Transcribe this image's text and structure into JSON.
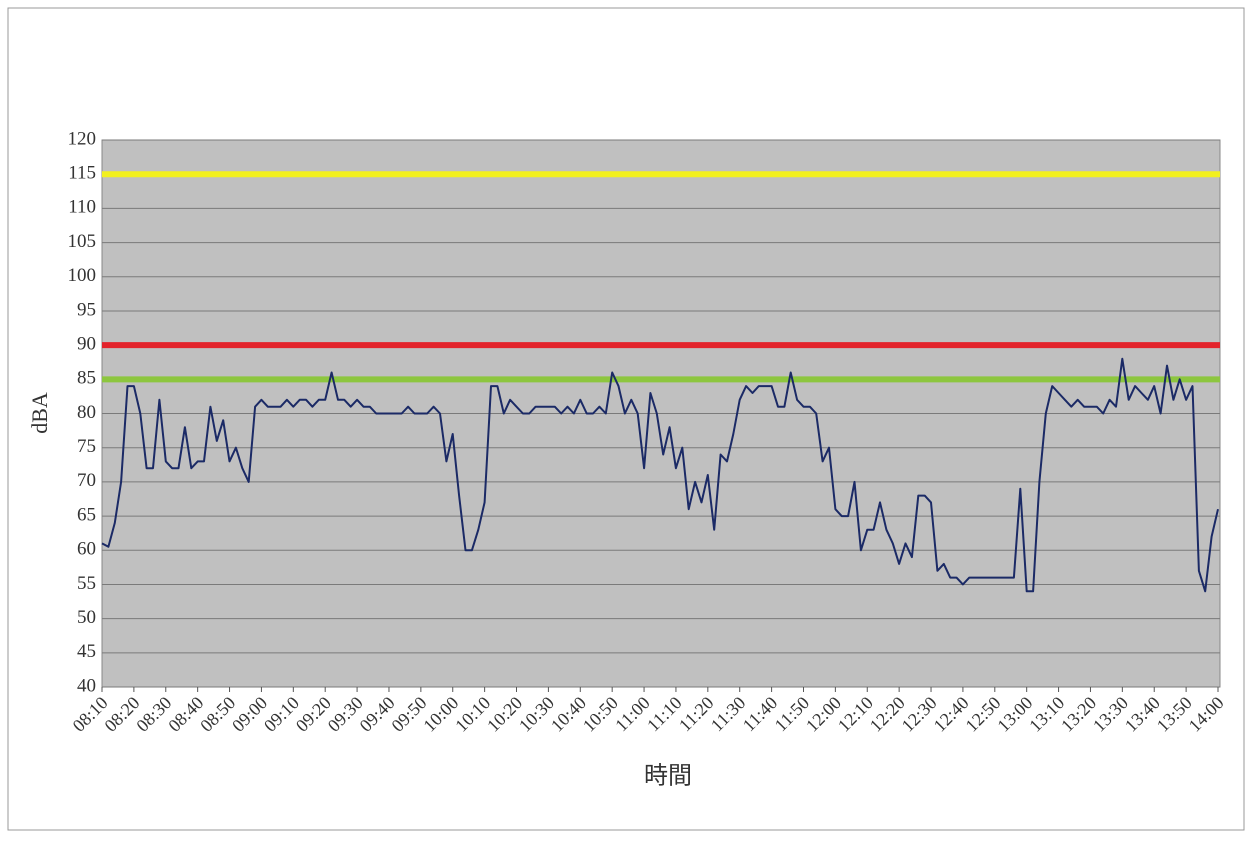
{
  "chart_data": {
    "type": "line",
    "ylabel": "dBA",
    "xlabel": "時間",
    "xlim": [
      "08:10",
      "14:00"
    ],
    "xticks": [
      "08:10",
      "08:20",
      "08:30",
      "08:40",
      "08:50",
      "09:00",
      "09:10",
      "09:20",
      "09:30",
      "09:40",
      "09:50",
      "10:00",
      "10:10",
      "10:20",
      "10:30",
      "10:40",
      "10:50",
      "11:00",
      "11:10",
      "11:20",
      "11:30",
      "11:40",
      "11:50",
      "12:00",
      "12:10",
      "12:20",
      "12:30",
      "12:40",
      "12:50",
      "13:00",
      "13:10",
      "13:20",
      "13:30",
      "13:40",
      "13:50",
      "14:00"
    ],
    "ylim": [
      40,
      120
    ],
    "yticks": [
      40,
      45,
      50,
      55,
      60,
      65,
      70,
      75,
      80,
      85,
      90,
      95,
      100,
      105,
      110,
      115,
      120
    ],
    "grid": true,
    "reference_lines": [
      {
        "value": 115,
        "color": "#f2f01e"
      },
      {
        "value": 90,
        "color": "#e3232b"
      },
      {
        "value": 85,
        "color": "#8dc63f"
      }
    ],
    "x": [
      "08:10",
      "08:12",
      "08:14",
      "08:16",
      "08:18",
      "08:20",
      "08:22",
      "08:24",
      "08:26",
      "08:28",
      "08:30",
      "08:32",
      "08:34",
      "08:36",
      "08:38",
      "08:40",
      "08:42",
      "08:44",
      "08:46",
      "08:48",
      "08:50",
      "08:52",
      "08:54",
      "08:56",
      "08:58",
      "09:00",
      "09:02",
      "09:04",
      "09:06",
      "09:08",
      "09:10",
      "09:12",
      "09:14",
      "09:16",
      "09:18",
      "09:20",
      "09:22",
      "09:24",
      "09:26",
      "09:28",
      "09:30",
      "09:32",
      "09:34",
      "09:36",
      "09:38",
      "09:40",
      "09:42",
      "09:44",
      "09:46",
      "09:48",
      "09:50",
      "09:52",
      "09:54",
      "09:56",
      "09:58",
      "10:00",
      "10:02",
      "10:04",
      "10:06",
      "10:08",
      "10:10",
      "10:12",
      "10:14",
      "10:16",
      "10:18",
      "10:20",
      "10:22",
      "10:24",
      "10:26",
      "10:28",
      "10:30",
      "10:32",
      "10:34",
      "10:36",
      "10:38",
      "10:40",
      "10:42",
      "10:44",
      "10:46",
      "10:48",
      "10:50",
      "10:52",
      "10:54",
      "10:56",
      "10:58",
      "11:00",
      "11:02",
      "11:04",
      "11:06",
      "11:08",
      "11:10",
      "11:12",
      "11:14",
      "11:16",
      "11:18",
      "11:20",
      "11:22",
      "11:24",
      "11:26",
      "11:28",
      "11:30",
      "11:32",
      "11:34",
      "11:36",
      "11:38",
      "11:40",
      "11:42",
      "11:44",
      "11:46",
      "11:48",
      "11:50",
      "11:52",
      "11:54",
      "11:56",
      "11:58",
      "12:00",
      "12:02",
      "12:04",
      "12:06",
      "12:08",
      "12:10",
      "12:12",
      "12:14",
      "12:16",
      "12:18",
      "12:20",
      "12:22",
      "12:24",
      "12:26",
      "12:28",
      "12:30",
      "12:32",
      "12:34",
      "12:36",
      "12:38",
      "12:40",
      "12:42",
      "12:44",
      "12:46",
      "12:48",
      "12:50",
      "12:52",
      "12:54",
      "12:56",
      "12:58",
      "13:00",
      "13:02",
      "13:04",
      "13:06",
      "13:08",
      "13:10",
      "13:12",
      "13:14",
      "13:16",
      "13:18",
      "13:20",
      "13:22",
      "13:24",
      "13:26",
      "13:28",
      "13:30",
      "13:32",
      "13:34",
      "13:36",
      "13:38",
      "13:40",
      "13:42",
      "13:44",
      "13:46",
      "13:48",
      "13:50",
      "13:52",
      "13:54",
      "13:56",
      "13:58",
      "14:00"
    ],
    "series": [
      {
        "color": "#1b2a66",
        "values": [
          61,
          60.5,
          64,
          70,
          84,
          84,
          80,
          72,
          72,
          82,
          73,
          72,
          72,
          78,
          72,
          73,
          73,
          81,
          76,
          79,
          73,
          75,
          72,
          70,
          81,
          82,
          81,
          81,
          81,
          82,
          81,
          82,
          82,
          81,
          82,
          82,
          86,
          82,
          82,
          81,
          82,
          81,
          81,
          80,
          80,
          80,
          80,
          80,
          81,
          80,
          80,
          80,
          81,
          80,
          73,
          77,
          68,
          60,
          60,
          63,
          67,
          84,
          84,
          80,
          82,
          81,
          80,
          80,
          81,
          81,
          81,
          81,
          80,
          81,
          80,
          82,
          80,
          80,
          81,
          80,
          86,
          84,
          80,
          82,
          80,
          72,
          83,
          80,
          74,
          78,
          72,
          75,
          66,
          70,
          67,
          71,
          63,
          74,
          73,
          77,
          82,
          84,
          83,
          84,
          84,
          84,
          81,
          81,
          86,
          82,
          81,
          81,
          80,
          73,
          75,
          66,
          65,
          65,
          70,
          60,
          63,
          63,
          67,
          63,
          61,
          58,
          61,
          59,
          68,
          68,
          67,
          57,
          58,
          56,
          56,
          55,
          56,
          56,
          56,
          56,
          56,
          56,
          56,
          56,
          69,
          54,
          54,
          70,
          80,
          84,
          83,
          82,
          81,
          82,
          81,
          81,
          81,
          80,
          82,
          81,
          88,
          82,
          84,
          83,
          82,
          84,
          80,
          87,
          82,
          85,
          82,
          84,
          57,
          54,
          62,
          66
        ]
      }
    ]
  }
}
